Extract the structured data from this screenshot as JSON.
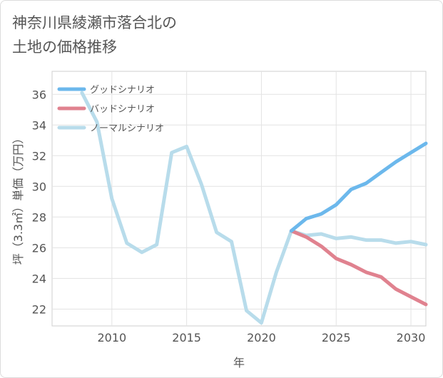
{
  "title_lines": [
    "神奈川県綾瀬市落合北の",
    "土地の価格推移"
  ],
  "chart_data": {
    "type": "line",
    "title": "神奈川県綾瀬市落合北の土地の価格推移",
    "xlabel": "年",
    "ylabel": "坪（3.3㎡）単価（万円）",
    "xlim": [
      2006,
      2031
    ],
    "ylim": [
      20.9,
      37.5
    ],
    "xticks": [
      2010,
      2015,
      2020,
      2025,
      2030
    ],
    "yticks": [
      22,
      24,
      26,
      28,
      30,
      32,
      34,
      36
    ],
    "grid": true,
    "legend_position": "top-left",
    "series": [
      {
        "name": "グッドシナリオ",
        "color": "#6cb8ec",
        "x": [
          2022,
          2023,
          2024,
          2025,
          2026,
          2027,
          2028,
          2029,
          2030,
          2031
        ],
        "values": [
          27.1,
          27.9,
          28.2,
          28.8,
          29.8,
          30.2,
          30.9,
          31.6,
          32.2,
          32.8
        ]
      },
      {
        "name": "バッドシナリオ",
        "color": "#e0828f",
        "x": [
          2022,
          2023,
          2024,
          2025,
          2026,
          2027,
          2028,
          2029,
          2030,
          2031
        ],
        "values": [
          27.1,
          26.7,
          26.1,
          25.3,
          24.9,
          24.4,
          24.1,
          23.3,
          22.8,
          22.3
        ]
      },
      {
        "name": "ノーマルシナリオ",
        "color": "#b8dceb",
        "x": [
          2008,
          2009,
          2010,
          2011,
          2012,
          2013,
          2014,
          2015,
          2016,
          2017,
          2018,
          2019,
          2020,
          2021,
          2022,
          2023,
          2024,
          2025,
          2026,
          2027,
          2028,
          2029,
          2030,
          2031
        ],
        "values": [
          36.1,
          34.2,
          29.2,
          26.3,
          25.7,
          26.2,
          32.2,
          32.6,
          30.1,
          27.0,
          26.4,
          21.9,
          21.1,
          24.4,
          27.1,
          26.8,
          26.9,
          26.6,
          26.7,
          26.5,
          26.5,
          26.3,
          26.4,
          26.2
        ]
      }
    ]
  }
}
